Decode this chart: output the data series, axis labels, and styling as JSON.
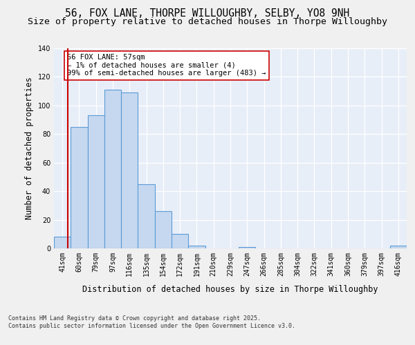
{
  "title1": "56, FOX LANE, THORPE WILLOUGHBY, SELBY, YO8 9NH",
  "title2": "Size of property relative to detached houses in Thorpe Willoughby",
  "xlabel": "Distribution of detached houses by size in Thorpe Willoughby",
  "ylabel": "Number of detached properties",
  "categories": [
    "41sqm",
    "60sqm",
    "79sqm",
    "97sqm",
    "116sqm",
    "135sqm",
    "154sqm",
    "172sqm",
    "191sqm",
    "210sqm",
    "229sqm",
    "247sqm",
    "266sqm",
    "285sqm",
    "304sqm",
    "322sqm",
    "341sqm",
    "360sqm",
    "379sqm",
    "397sqm",
    "416sqm"
  ],
  "bar_values": [
    8,
    85,
    93,
    111,
    109,
    45,
    26,
    10,
    2,
    0,
    0,
    1,
    0,
    0,
    0,
    0,
    0,
    0,
    0,
    0,
    2
  ],
  "bar_color": "#c5d8f0",
  "bar_edge_color": "#5b9bd5",
  "vline_color": "#cc0000",
  "annotation_text": "56 FOX LANE: 57sqm\n← 1% of detached houses are smaller (4)\n99% of semi-detached houses are larger (483) →",
  "ylim": [
    0,
    140
  ],
  "yticks": [
    0,
    20,
    40,
    60,
    80,
    100,
    120,
    140
  ],
  "bg_color": "#e8eef8",
  "fig_bg_color": "#f0f0f0",
  "grid_color": "#ffffff",
  "footer": "Contains HM Land Registry data © Crown copyright and database right 2025.\nContains public sector information licensed under the Open Government Licence v3.0.",
  "title_fontsize": 10.5,
  "subtitle_fontsize": 9.5,
  "tick_fontsize": 7,
  "ylabel_fontsize": 8.5,
  "xlabel_fontsize": 8.5,
  "footer_fontsize": 6,
  "annot_fontsize": 7.5
}
